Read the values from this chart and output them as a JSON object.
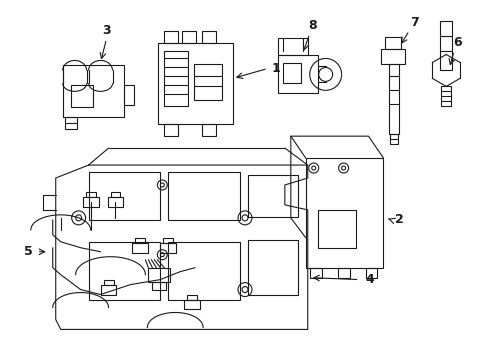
{
  "bg_color": "#ffffff",
  "line_color": "#1a1a1a",
  "lw": 0.8,
  "fig_width": 4.89,
  "fig_height": 3.6,
  "dpi": 100
}
